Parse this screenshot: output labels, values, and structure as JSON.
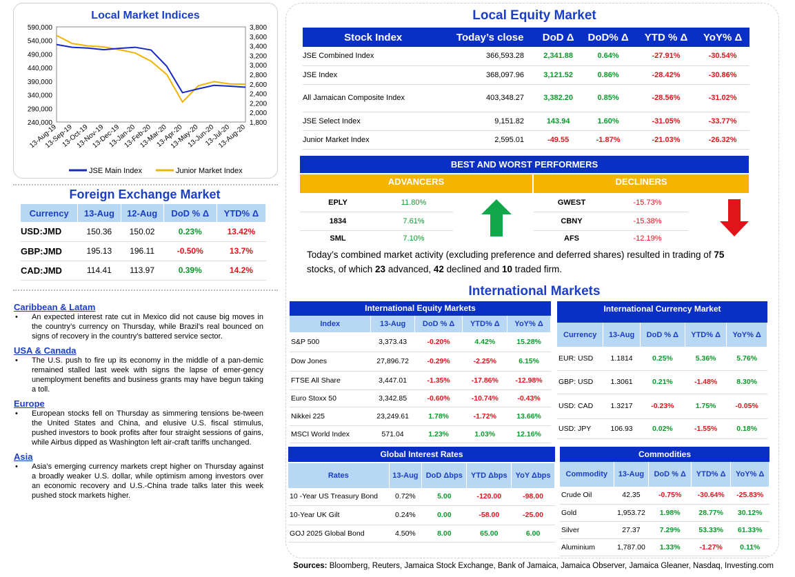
{
  "indices_chart": {
    "title": "Local Market Indices",
    "left_ticks": [
      "590,000",
      "540,000",
      "490,000",
      "440,000",
      "390,000",
      "340,000",
      "290,000",
      "240,000"
    ],
    "right_ticks": [
      "3,800",
      "3,600",
      "3,400",
      "3,200",
      "3,000",
      "2,800",
      "2,600",
      "2,400",
      "2,200",
      "2,000",
      "1,800"
    ],
    "x_ticks": [
      "13-Aug-19",
      "13-Sep-19",
      "13-Oct-19",
      "13-Nov-19",
      "13-Dec-19",
      "13-Jan-20",
      "13-Feb-20",
      "13-Mar-20",
      "13-Apr-20",
      "13-May-20",
      "13-Jun-20",
      "13-Jul-20",
      "13-Aug-20"
    ],
    "legend": [
      "JSE Main Index",
      "Junior Market Index"
    ],
    "colors": {
      "main": "#1428c8",
      "junior": "#f0b400"
    }
  },
  "chart_data": {
    "type": "line",
    "title": "Local Market Indices",
    "x": [
      "13-Aug-19",
      "13-Sep-19",
      "13-Oct-19",
      "13-Nov-19",
      "13-Dec-19",
      "13-Jan-20",
      "13-Feb-20",
      "13-Mar-20",
      "13-Apr-20",
      "13-May-20",
      "13-Jun-20",
      "13-Jul-20",
      "13-Aug-20"
    ],
    "series": [
      {
        "name": "JSE Main Index",
        "axis": "left",
        "values": [
          525000,
          515000,
          512000,
          506000,
          511000,
          515000,
          505000,
          445000,
          348000,
          362000,
          375000,
          372000,
          368000
        ]
      },
      {
        "name": "Junior Market Index",
        "axis": "right",
        "values": [
          3620,
          3450,
          3400,
          3380,
          3320,
          3250,
          3080,
          2800,
          2220,
          2560,
          2650,
          2600,
          2595
        ]
      }
    ],
    "ylim_left": [
      240000,
      590000
    ],
    "ylim_right": [
      1800,
      3800
    ],
    "legend": "bottom"
  },
  "local_equity": {
    "title": "Local Equity Market",
    "headers": [
      "Stock Index",
      "Today’s close",
      "DoD  Δ",
      "DoD% Δ",
      "YTD % Δ",
      "YoY% Δ"
    ],
    "rows": [
      {
        "name": "JSE Combined Index",
        "close": "366,593.28",
        "dod": "2,341.88",
        "dodp": "0.64%",
        "ytd": "-27.91%",
        "yoy": "-30.54%"
      },
      {
        "name": "JSE Index",
        "close": "368,097.96",
        "dod": "3,121.52",
        "dodp": "0.86%",
        "ytd": "-28.42%",
        "yoy": "-30.86%"
      },
      {
        "name": "All Jamaican Composite Index",
        "close": "403,348.27",
        "dod": "3,382.20",
        "dodp": "0.85%",
        "ytd": "-28.56%",
        "yoy": "-31.02%"
      },
      {
        "name": "JSE Select Index",
        "close": "9,151.82",
        "dod": "143.94",
        "dodp": "1.60%",
        "ytd": "-31.05%",
        "yoy": "-33.77%"
      },
      {
        "name": "Junior Market Index",
        "close": "2,595.01",
        "dod": "-49.55",
        "dodp": "-1.87%",
        "ytd": "-21.03%",
        "yoy": "-26.32%"
      }
    ]
  },
  "performers": {
    "title": "BEST AND WORST PERFORMERS",
    "advancers_label": "ADVANCERS",
    "decliners_label": "DECLINERS",
    "advancers": [
      {
        "sym": "EPLY",
        "pct": "11.80%"
      },
      {
        "sym": "1834",
        "pct": "7.61%"
      },
      {
        "sym": "SML",
        "pct": "7.10%"
      }
    ],
    "decliners": [
      {
        "sym": "GWEST",
        "pct": "-15.73%"
      },
      {
        "sym": "CBNY",
        "pct": "-15.38%"
      },
      {
        "sym": "AFS",
        "pct": "-12.19%"
      }
    ]
  },
  "summary": {
    "t1": "Today’s combined market activity (excluding preference and deferred shares) resulted in trading of ",
    "n1": "75",
    "t2": " stocks, of which ",
    "n2": "23",
    "t3": " advanced, ",
    "n3": "42",
    "t4": " declined and ",
    "n4": "10",
    "t5": " traded firm."
  },
  "fx": {
    "title": "Foreign Exchange Market",
    "headers": [
      "Currency",
      "13-Aug",
      "12-Aug",
      "DoD % Δ",
      "YTD% Δ"
    ],
    "rows": [
      {
        "cur": "USD:JMD",
        "a": "150.36",
        "b": "150.02",
        "dod": "0.23%",
        "ytd": "13.42%"
      },
      {
        "cur": "GBP:JMD",
        "a": "195.13",
        "b": "196.11",
        "dod": "-0.50%",
        "ytd": "13.7%"
      },
      {
        "cur": "CAD:JMD",
        "a": "114.41",
        "b": "113.97",
        "dod": "0.39%",
        "ytd": "14.2%"
      }
    ]
  },
  "news": [
    {
      "heading": "Caribbean & Latam",
      "text": "An expected interest rate cut in Mexico did not cause big moves in the country’s currency on Thursday, while Brazil’s real bounced on signs of recovery in the country’s battered service sector."
    },
    {
      "heading": "USA & Canada",
      "text": "The U.S. push to fire up its economy in the middle of a pan-demic remained stalled last week with signs the lapse of emer-gency unemployment benefits and business grants may have begun taking a toll."
    },
    {
      "heading": "Europe",
      "text": "European stocks fell on Thursday as simmering tensions be-tween the United States and China, and elusive U.S. fiscal stimulus, pushed investors to book profits after four straight sessions of gains, while Airbus dipped as Washington left air-craft tariffs unchanged."
    },
    {
      "heading": "Asia",
      "text": "Asia’s emerging currency markets crept higher on Thursday against a broadly weaker U.S. dollar, while optimism among investors over an economic recovery and U.S.-China trade talks later this week pushed stock markets higher."
    }
  ],
  "international": {
    "title": "International Markets",
    "equity": {
      "title": "International Equity Markets",
      "headers": [
        "Index",
        "13-Aug",
        "DoD % Δ",
        "YTD% Δ",
        "YoY% Δ"
      ],
      "rows": [
        {
          "name": "S&P 500",
          "v": "3,373.43",
          "dod": "-0.20%",
          "ytd": "4.42%",
          "yoy": "15.28%"
        },
        {
          "name": "Dow Jones",
          "v": "27,896.72",
          "dod": "-0.29%",
          "ytd": "-2.25%",
          "yoy": "6.15%"
        },
        {
          "name": "FTSE All Share",
          "v": "3,447.01",
          "dod": "-1.35%",
          "ytd": "-17.86%",
          "yoy": "-12.98%"
        },
        {
          "name": "Euro Stoxx 50",
          "v": "3,342.85",
          "dod": "-0.60%",
          "ytd": "-10.74%",
          "yoy": "-0.43%"
        },
        {
          "name": "Nikkei 225",
          "v": "23,249.61",
          "dod": "1.78%",
          "ytd": "-1.72%",
          "yoy": "13.66%"
        },
        {
          "name": "MSCI World Index",
          "v": "571.04",
          "dod": "1.23%",
          "ytd": "1.03%",
          "yoy": "12.16%"
        }
      ]
    },
    "currency": {
      "title": "International Currency Market",
      "headers": [
        "Currency",
        "13-Aug",
        "DoD % Δ",
        "YTD% Δ",
        "YoY% Δ"
      ],
      "rows": [
        {
          "name": "EUR: USD",
          "v": "1.1814",
          "dod": "0.25%",
          "ytd": "5.36%",
          "yoy": "5.76%"
        },
        {
          "name": "GBP: USD",
          "v": "1.3061",
          "dod": "0.21%",
          "ytd": "-1.48%",
          "yoy": "8.30%"
        },
        {
          "name": "USD: CAD",
          "v": "1.3217",
          "dod": "-0.23%",
          "ytd": "1.75%",
          "yoy": "-0.05%"
        },
        {
          "name": "USD: JPY",
          "v": "106.93",
          "dod": "0.02%",
          "ytd": "-1.55%",
          "yoy": "0.18%"
        }
      ]
    },
    "rates": {
      "title": "Global Interest Rates",
      "headers": [
        "Rates",
        "13-Aug",
        "DoD Δbps",
        "YTD Δbps",
        "YoY Δbps"
      ],
      "rows": [
        {
          "name": "10 -Year US Treasury Bond",
          "v": "0.72%",
          "dod": "5.00",
          "ytd": "-120.00",
          "yoy": "-98.00"
        },
        {
          "name": "10-Year UK Gilt",
          "v": "0.24%",
          "dod": "0.00",
          "ytd": "-58.00",
          "yoy": "-25.00"
        },
        {
          "name": "GOJ 2025 Global Bond",
          "v": "4.50%",
          "dod": "8.00",
          "ytd": "65.00",
          "yoy": "6.00"
        }
      ]
    },
    "commodities": {
      "title": "Commodities",
      "headers": [
        "Commodity",
        "13-Aug",
        "DoD % Δ",
        "YTD% Δ",
        "YoY% Δ"
      ],
      "rows": [
        {
          "name": "Crude Oil",
          "v": "42.35",
          "dod": "-0.75%",
          "ytd": "-30.64%",
          "yoy": "-25.83%"
        },
        {
          "name": "Gold",
          "v": "1,953.72",
          "dod": "1.98%",
          "ytd": "28.77%",
          "yoy": "30.12%"
        },
        {
          "name": "Silver",
          "v": "27.37",
          "dod": "7.29%",
          "ytd": "53.33%",
          "yoy": "61.33%"
        },
        {
          "name": "Aluminium",
          "v": "1,787.00",
          "dod": "1.33%",
          "ytd": "-1.27%",
          "yoy": "0.11%"
        }
      ]
    }
  },
  "sources": {
    "label": "Sources:",
    "text": " Bloomberg, Reuters, Jamaica Stock Exchange, Bank of Jamaica, Jamaica Observer, Jamaica Gleaner, Nasdaq, Investing.com"
  }
}
